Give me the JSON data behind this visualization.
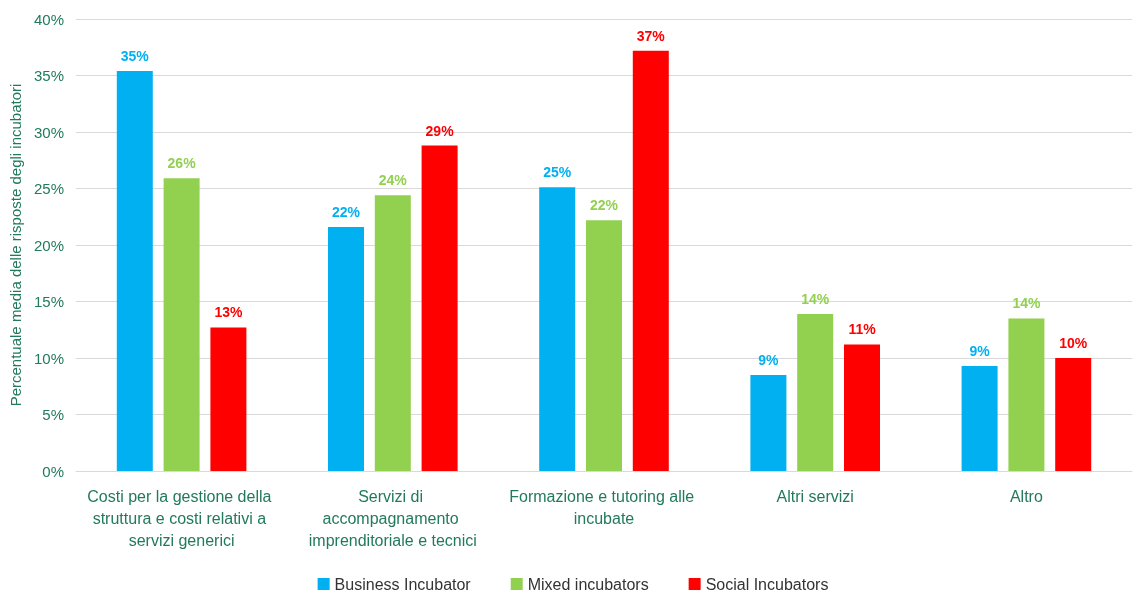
{
  "chart_data": {
    "type": "bar",
    "categories": [
      "Costi per la gestione della struttura e costi relativi a servizi generici",
      "Servizi di accompagnamento imprenditoriale e tecnici",
      "Formazione e tutoring alle incubate",
      "Altri servizi",
      "Altro"
    ],
    "series": [
      {
        "name": "Business Incubator",
        "color": "#00b0f0",
        "values": [
          35.4,
          21.6,
          25.1,
          8.5,
          9.3
        ],
        "value_labels": [
          "35%",
          "22%",
          "25%",
          "9%",
          "9%"
        ]
      },
      {
        "name": "Mixed incubators",
        "color": "#92d050",
        "values": [
          25.9,
          24.4,
          22.2,
          13.9,
          13.5
        ],
        "value_labels": [
          "26%",
          "24%",
          "22%",
          "14%",
          "14%"
        ]
      },
      {
        "name": "Social Incubators",
        "color": "#ff0000",
        "values": [
          12.7,
          28.8,
          37.2,
          11.2,
          10.0
        ],
        "value_labels": [
          "13%",
          "29%",
          "37%",
          "11%",
          "10%"
        ]
      }
    ],
    "ylabel": "Percentuale media delle risposte degli incubatori",
    "ylim": [
      0,
      40
    ],
    "yticks": [
      {
        "value": 0,
        "label": "0%"
      },
      {
        "value": 5,
        "label": "5%"
      },
      {
        "value": 10,
        "label": "10%"
      },
      {
        "value": 15,
        "label": "15%"
      },
      {
        "value": 20,
        "label": "20%"
      },
      {
        "value": 25,
        "label": "25%"
      },
      {
        "value": 30,
        "label": "30%"
      },
      {
        "value": 35,
        "label": "35%"
      },
      {
        "value": 40,
        "label": "40%"
      }
    ],
    "grid": "y",
    "legend": "bottom"
  }
}
